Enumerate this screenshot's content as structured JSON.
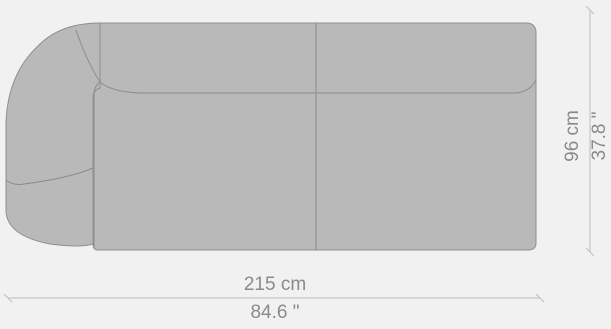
{
  "diagram": {
    "width_dimension": {
      "metric": "215 cm",
      "imperial": "84.6 \""
    },
    "depth_dimension": {
      "metric": "96 cm",
      "imperial": "37.8 \""
    }
  },
  "colors": {
    "background": "#f1f1f1",
    "sofa_fill": "#b9b9b9",
    "sofa_stroke": "#8f8f8f",
    "seam": "#8c8c8c",
    "dimension_line": "#bdbdbd",
    "dimension_text": "#8a8a8a"
  }
}
